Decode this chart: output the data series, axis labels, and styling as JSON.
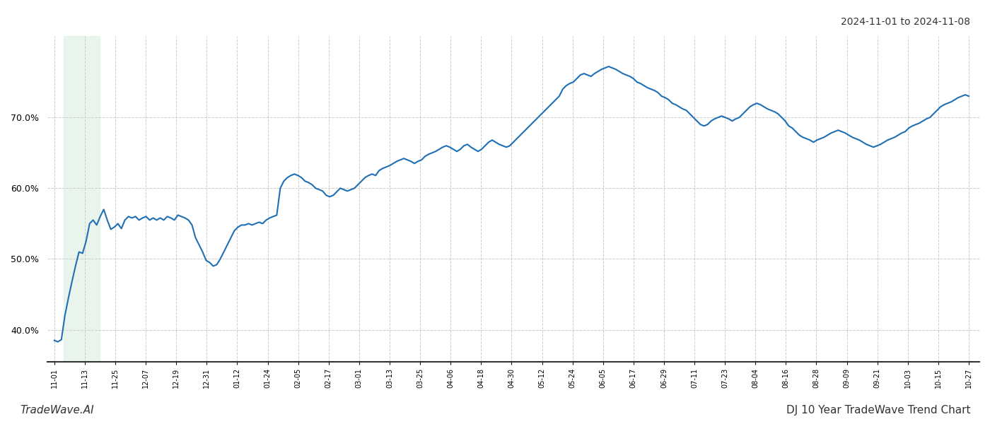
{
  "title_date_range": "2024-11-01 to 2024-11-08",
  "footer_left": "TradeWave.AI",
  "footer_right": "DJ 10 Year TradeWave Trend Chart",
  "line_color": "#1f6fb5",
  "line_width": 1.5,
  "background_color": "#ffffff",
  "grid_color": "#cccccc",
  "highlight_band_color": "#d4edda",
  "highlight_band_alpha": 0.5,
  "ylim": [
    0.355,
    0.815
  ],
  "yticks": [
    0.4,
    0.5,
    0.6,
    0.7
  ],
  "x_labels": [
    "11-01",
    "11-13",
    "11-25",
    "12-07",
    "12-19",
    "12-31",
    "01-12",
    "01-24",
    "02-05",
    "02-17",
    "03-01",
    "03-13",
    "03-25",
    "04-06",
    "04-18",
    "04-30",
    "05-12",
    "05-24",
    "06-05",
    "06-17",
    "06-29",
    "07-11",
    "07-23",
    "08-04",
    "08-16",
    "08-28",
    "09-09",
    "09-21",
    "10-03",
    "10-15",
    "10-27"
  ],
  "values": [
    0.385,
    0.383,
    0.386,
    0.42,
    0.445,
    0.468,
    0.49,
    0.51,
    0.508,
    0.525,
    0.55,
    0.555,
    0.548,
    0.56,
    0.57,
    0.555,
    0.542,
    0.545,
    0.55,
    0.543,
    0.555,
    0.56,
    0.558,
    0.56,
    0.555,
    0.558,
    0.56,
    0.555,
    0.558,
    0.555,
    0.558,
    0.555,
    0.56,
    0.558,
    0.555,
    0.562,
    0.56,
    0.558,
    0.555,
    0.548,
    0.53,
    0.52,
    0.51,
    0.498,
    0.495,
    0.49,
    0.492,
    0.5,
    0.51,
    0.52,
    0.53,
    0.54,
    0.545,
    0.548,
    0.548,
    0.55,
    0.548,
    0.55,
    0.552,
    0.55,
    0.555,
    0.558,
    0.56,
    0.562,
    0.6,
    0.61,
    0.615,
    0.618,
    0.62,
    0.618,
    0.615,
    0.61,
    0.608,
    0.605,
    0.6,
    0.598,
    0.596,
    0.59,
    0.588,
    0.59,
    0.595,
    0.6,
    0.598,
    0.596,
    0.598,
    0.6,
    0.605,
    0.61,
    0.615,
    0.618,
    0.62,
    0.618,
    0.625,
    0.628,
    0.63,
    0.632,
    0.635,
    0.638,
    0.64,
    0.642,
    0.64,
    0.638,
    0.635,
    0.638,
    0.64,
    0.645,
    0.648,
    0.65,
    0.652,
    0.655,
    0.658,
    0.66,
    0.658,
    0.655,
    0.652,
    0.655,
    0.66,
    0.662,
    0.658,
    0.655,
    0.652,
    0.655,
    0.66,
    0.665,
    0.668,
    0.665,
    0.662,
    0.66,
    0.658,
    0.66,
    0.665,
    0.67,
    0.675,
    0.68,
    0.685,
    0.69,
    0.695,
    0.7,
    0.705,
    0.71,
    0.715,
    0.72,
    0.725,
    0.73,
    0.74,
    0.745,
    0.748,
    0.75,
    0.755,
    0.76,
    0.762,
    0.76,
    0.758,
    0.762,
    0.765,
    0.768,
    0.77,
    0.772,
    0.77,
    0.768,
    0.765,
    0.762,
    0.76,
    0.758,
    0.755,
    0.75,
    0.748,
    0.745,
    0.742,
    0.74,
    0.738,
    0.735,
    0.73,
    0.728,
    0.725,
    0.72,
    0.718,
    0.715,
    0.712,
    0.71,
    0.705,
    0.7,
    0.695,
    0.69,
    0.688,
    0.69,
    0.695,
    0.698,
    0.7,
    0.702,
    0.7,
    0.698,
    0.695,
    0.698,
    0.7,
    0.705,
    0.71,
    0.715,
    0.718,
    0.72,
    0.718,
    0.715,
    0.712,
    0.71,
    0.708,
    0.705,
    0.7,
    0.695,
    0.688,
    0.685,
    0.68,
    0.675,
    0.672,
    0.67,
    0.668,
    0.665,
    0.668,
    0.67,
    0.672,
    0.675,
    0.678,
    0.68,
    0.682,
    0.68,
    0.678,
    0.675,
    0.672,
    0.67,
    0.668,
    0.665,
    0.662,
    0.66,
    0.658,
    0.66,
    0.662,
    0.665,
    0.668,
    0.67,
    0.672,
    0.675,
    0.678,
    0.68,
    0.685,
    0.688,
    0.69,
    0.692,
    0.695,
    0.698,
    0.7,
    0.705,
    0.71,
    0.715,
    0.718,
    0.72,
    0.722,
    0.725,
    0.728,
    0.73,
    0.732,
    0.73
  ]
}
